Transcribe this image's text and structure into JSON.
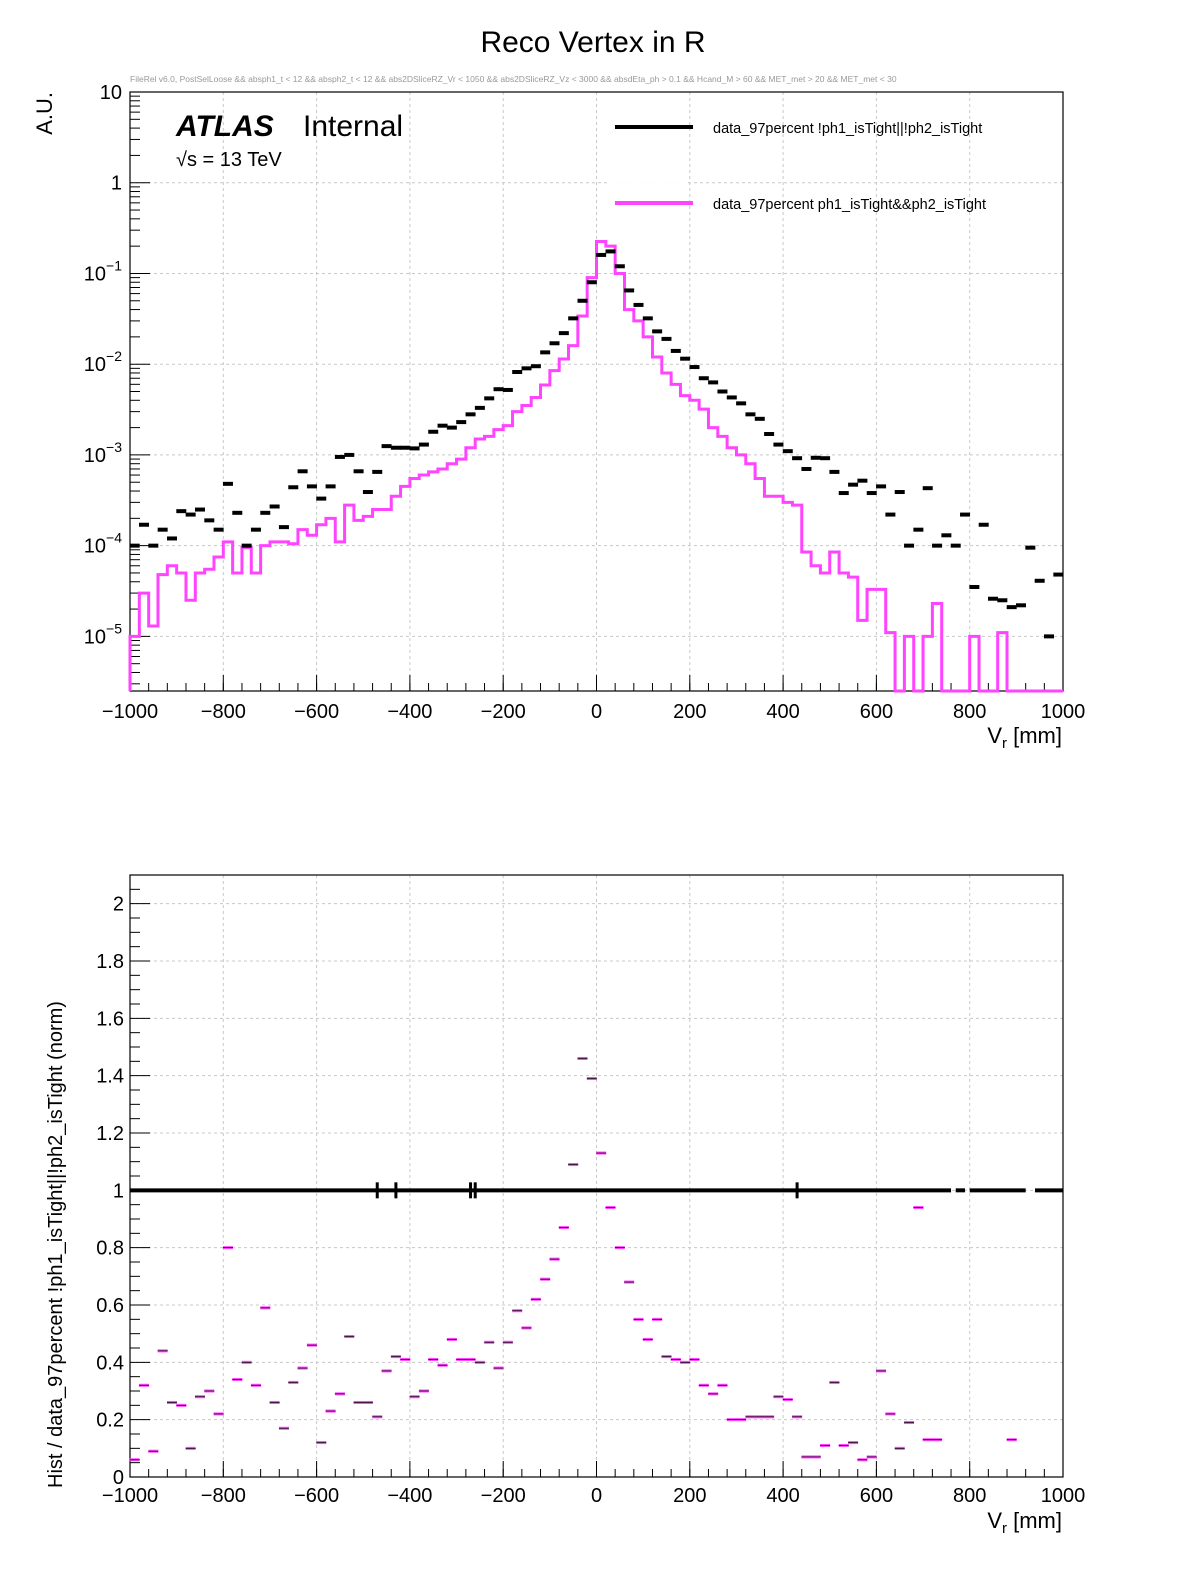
{
  "title": "Reco Vertex in R",
  "cut_string": "FileRel v6.0, PostSelLoose &&  absph1_t < 12 && absph2_t < 12 && abs2DSliceRZ_Vr < 1050 && abs2DSliceRZ_Vz < 3000 && absdEta_ph > 0.1 && Hcand_M > 60 && MET_met > 20 && MET_met < 30",
  "atlas_label": "ATLAS",
  "internal_label": "Internal",
  "energy_label": "√s = 13 TeV",
  "colors": {
    "black": "#000000",
    "magenta": "#ff44ff",
    "grid": "#c8c8c8"
  },
  "chart_data": [
    {
      "type": "line",
      "scale_y": "log",
      "ylabel": "A.U.",
      "xlabel_main": "V",
      "xlabel_sub": "r",
      "xlabel_unit": " [mm]",
      "xlim": [
        -1000,
        1000
      ],
      "ylim": [
        2.5e-06,
        10
      ],
      "grid": true,
      "legend_position": "top-right",
      "x_ticks": [
        "−1000",
        "−800",
        "−600",
        "−400",
        "−200",
        "0",
        "200",
        "400",
        "600",
        "800",
        "1000"
      ],
      "y_ticks": [
        {
          "base": "10",
          "exp": ""
        },
        {
          "base": "1",
          "exp": ""
        },
        {
          "base": "10",
          "exp": "−1"
        },
        {
          "base": "10",
          "exp": "−2"
        },
        {
          "base": "10",
          "exp": "−3"
        },
        {
          "base": "10",
          "exp": "−4"
        },
        {
          "base": "10",
          "exp": "−5"
        }
      ],
      "series": [
        {
          "name": "data_97percent  !ph1_isTight||!ph2_isTight",
          "style": "markers",
          "color": "#000000",
          "x": [
            -990,
            -970,
            -950,
            -930,
            -910,
            -890,
            -870,
            -850,
            -830,
            -810,
            -790,
            -770,
            -750,
            -730,
            -710,
            -690,
            -670,
            -650,
            -630,
            -610,
            -590,
            -570,
            -550,
            -530,
            -510,
            -490,
            -470,
            -450,
            -430,
            -410,
            -390,
            -370,
            -350,
            -330,
            -310,
            -290,
            -270,
            -250,
            -230,
            -210,
            -190,
            -170,
            -150,
            -130,
            -110,
            -90,
            -70,
            -50,
            -30,
            -10,
            10,
            30,
            50,
            70,
            90,
            110,
            130,
            150,
            170,
            190,
            210,
            230,
            250,
            270,
            290,
            310,
            330,
            350,
            370,
            390,
            410,
            430,
            450,
            470,
            490,
            510,
            530,
            550,
            570,
            590,
            610,
            630,
            650,
            670,
            690,
            710,
            730,
            750,
            770,
            790,
            810,
            830,
            850,
            870,
            890,
            910,
            930,
            950,
            970,
            990
          ],
          "y": [
            0.0001,
            0.00017,
            0.0001,
            0.00015,
            0.00012,
            0.00024,
            0.00022,
            0.00025,
            0.00019,
            0.00015,
            0.00048,
            0.00023,
            0.0001,
            0.00015,
            0.00023,
            0.00027,
            0.00016,
            0.00044,
            0.00066,
            0.00045,
            0.00033,
            0.00045,
            0.00095,
            0.001,
            0.00066,
            0.00039,
            0.00065,
            0.00125,
            0.0012,
            0.0012,
            0.00118,
            0.0013,
            0.0018,
            0.0021,
            0.002,
            0.0023,
            0.0028,
            0.0033,
            0.0042,
            0.0053,
            0.0052,
            0.0082,
            0.009,
            0.0095,
            0.0135,
            0.017,
            0.022,
            0.032,
            0.05,
            0.08,
            0.16,
            0.175,
            0.12,
            0.065,
            0.045,
            0.032,
            0.023,
            0.019,
            0.014,
            0.0115,
            0.0093,
            0.007,
            0.0063,
            0.005,
            0.0043,
            0.0037,
            0.0028,
            0.0025,
            0.0017,
            0.0013,
            0.0011,
            0.00092,
            0.0007,
            0.00093,
            0.00092,
            0.00065,
            0.00038,
            0.00047,
            0.00052,
            0.00038,
            0.00045,
            0.00022,
            0.00039,
            0.0001,
            0.00015,
            0.00043,
            0.0001,
            0.00013,
            0.0001,
            0.00022,
            3.5e-05,
            0.00017,
            2.6e-05,
            2.5e-05,
            2.1e-05,
            2.2e-05,
            9.5e-05,
            4.1e-05,
            1e-05,
            4.8e-05
          ]
        },
        {
          "name": "data_97percent  ph1_isTight&&ph2_isTight",
          "style": "step",
          "color": "#ff44ff",
          "x": [
            -990,
            -970,
            -950,
            -930,
            -910,
            -890,
            -870,
            -850,
            -830,
            -810,
            -790,
            -770,
            -750,
            -730,
            -710,
            -690,
            -670,
            -650,
            -630,
            -610,
            -590,
            -570,
            -550,
            -530,
            -510,
            -490,
            -470,
            -450,
            -430,
            -410,
            -390,
            -370,
            -350,
            -330,
            -310,
            -290,
            -270,
            -250,
            -230,
            -210,
            -190,
            -170,
            -150,
            -130,
            -110,
            -90,
            -70,
            -50,
            -30,
            -10,
            10,
            30,
            50,
            70,
            90,
            110,
            130,
            150,
            170,
            190,
            210,
            230,
            250,
            270,
            290,
            310,
            330,
            350,
            370,
            390,
            410,
            430,
            450,
            470,
            490,
            510,
            530,
            550,
            570,
            590,
            610,
            630,
            650,
            670,
            690,
            710,
            730,
            750,
            770,
            790,
            810,
            830,
            850,
            870,
            890,
            910,
            930,
            950,
            970,
            990
          ],
          "y": [
            1e-05,
            3e-05,
            1.3e-05,
            4.8e-05,
            6e-05,
            5e-05,
            2.5e-05,
            5e-05,
            5.5e-05,
            7.5e-05,
            0.00011,
            5e-05,
            9.5e-05,
            5e-05,
            0.0001,
            0.00011,
            0.00011,
            0.000105,
            0.00015,
            0.00013,
            0.00017,
            0.0002,
            0.00011,
            0.00028,
            0.00019,
            0.00021,
            0.00025,
            0.00025,
            0.00035,
            0.00045,
            0.00055,
            0.0006,
            0.00065,
            0.0007,
            0.0008,
            0.0009,
            0.0012,
            0.0015,
            0.0016,
            0.0019,
            0.0021,
            0.003,
            0.0035,
            0.0043,
            0.0059,
            0.0085,
            0.0114,
            0.016,
            0.034,
            0.09,
            0.225,
            0.2,
            0.1,
            0.04,
            0.03,
            0.02,
            0.012,
            0.008,
            0.006,
            0.0045,
            0.004,
            0.0032,
            0.002,
            0.0016,
            0.0012,
            0.001,
            0.0008,
            0.00055,
            0.00035,
            0.00035,
            0.0003,
            0.00028,
            8.5e-05,
            6e-05,
            5e-05,
            8.5e-05,
            5e-05,
            4.5e-05,
            1.5e-05,
            3.3e-05,
            3.3e-05,
            1.1e-05,
            2.5e-06,
            1e-05,
            2.5e-06,
            1e-05,
            2.3e-05,
            2.5e-06,
            2.5e-06,
            2.5e-06,
            1e-05,
            2.5e-06,
            2.5e-06,
            1.1e-05,
            2.5e-06,
            2.5e-06,
            2.5e-06,
            2.5e-06,
            2.5e-06,
            2.5e-06
          ]
        }
      ]
    },
    {
      "type": "scatter",
      "ylabel": "Hist / data_97percent  !ph1_isTight||!ph2_isTight (norm)",
      "xlabel_main": "V",
      "xlabel_sub": "r",
      "xlabel_unit": " [mm]",
      "xlim": [
        -1000,
        1000
      ],
      "ylim": [
        0,
        2.1
      ],
      "grid": true,
      "x_ticks": [
        "−1000",
        "−800",
        "−600",
        "−400",
        "−200",
        "0",
        "200",
        "400",
        "600",
        "800",
        "1000"
      ],
      "y_ticks": [
        "0",
        "0.2",
        "0.4",
        "0.6",
        "0.8",
        "1",
        "1.2",
        "1.4",
        "1.6",
        "1.8",
        "2"
      ],
      "reference_value": 1,
      "reference_color": "#000000",
      "reference_points_x": [
        -470,
        -430,
        -270,
        -260,
        430
      ],
      "ratio_color": "#ff44ff",
      "ratio": {
        "x": [
          -990,
          -970,
          -950,
          -930,
          -910,
          -890,
          -870,
          -850,
          -830,
          -810,
          -790,
          -770,
          -750,
          -730,
          -710,
          -690,
          -670,
          -650,
          -630,
          -610,
          -590,
          -570,
          -550,
          -530,
          -510,
          -490,
          -470,
          -450,
          -430,
          -410,
          -390,
          -370,
          -350,
          -330,
          -310,
          -290,
          -270,
          -250,
          -230,
          -210,
          -190,
          -170,
          -150,
          -130,
          -110,
          -90,
          -70,
          -50,
          -30,
          -10,
          10,
          30,
          50,
          70,
          90,
          110,
          130,
          150,
          170,
          190,
          210,
          230,
          250,
          270,
          290,
          310,
          330,
          350,
          370,
          390,
          410,
          430,
          450,
          470,
          490,
          510,
          530,
          550,
          570,
          590,
          610,
          630,
          650,
          670,
          690,
          710,
          730,
          890
        ],
        "y": [
          0.06,
          0.32,
          0.09,
          0.44,
          0.26,
          0.25,
          0.1,
          0.28,
          0.3,
          0.22,
          0.8,
          0.34,
          0.4,
          0.32,
          0.59,
          0.26,
          0.17,
          0.33,
          0.38,
          0.46,
          0.12,
          0.23,
          0.29,
          0.49,
          0.26,
          0.26,
          0.21,
          0.37,
          0.42,
          0.41,
          0.28,
          0.3,
          0.41,
          0.39,
          0.48,
          0.41,
          0.41,
          0.4,
          0.47,
          0.38,
          0.47,
          0.58,
          0.52,
          0.62,
          0.69,
          0.76,
          0.87,
          1.09,
          1.46,
          1.39,
          1.13,
          0.94,
          0.8,
          0.68,
          0.55,
          0.48,
          0.55,
          0.42,
          0.41,
          0.4,
          0.41,
          0.32,
          0.29,
          0.32,
          0.2,
          0.2,
          0.21,
          0.21,
          0.21,
          0.28,
          0.27,
          0.21,
          0.07,
          0.07,
          0.11,
          0.33,
          0.11,
          0.12,
          0.06,
          0.07,
          0.37,
          0.22,
          0.1,
          0.19,
          0.94,
          0.13,
          0.13,
          0.13
        ]
      }
    }
  ]
}
